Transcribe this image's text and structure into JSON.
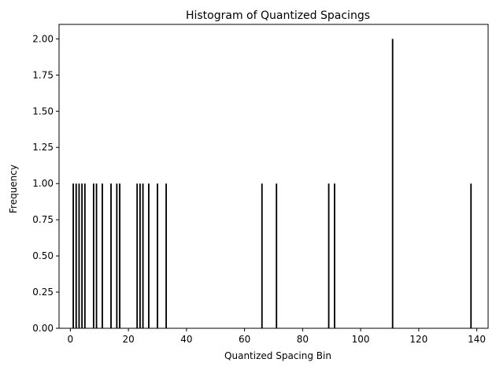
{
  "chart_data": {
    "type": "bar",
    "title": "Histogram of Quantized Spacings",
    "xlabel": "Quantized Spacing Bin",
    "ylabel": "Frequency",
    "xlim": [
      -3.9,
      143.9
    ],
    "ylim": [
      0,
      2.1
    ],
    "xticks": [
      0,
      20,
      40,
      60,
      80,
      100,
      120,
      140
    ],
    "xtick_labels": [
      "0",
      "20",
      "40",
      "60",
      "80",
      "100",
      "120",
      "140"
    ],
    "yticks": [
      0,
      0.25,
      0.5,
      0.75,
      1.0,
      1.25,
      1.5,
      1.75,
      2.0
    ],
    "ytick_labels": [
      "0.00",
      "0.25",
      "0.50",
      "0.75",
      "1.00",
      "1.25",
      "1.50",
      "1.75",
      "2.00"
    ],
    "bar_width": 0.5,
    "grid": false,
    "bar_color": "#000000",
    "x": [
      1,
      2,
      3,
      4,
      5,
      8,
      9,
      11,
      14,
      16,
      17,
      23,
      24,
      25,
      27,
      30,
      33,
      66,
      71,
      89,
      91,
      111,
      138
    ],
    "values": [
      1,
      1,
      1,
      1,
      1,
      1,
      1,
      1,
      1,
      1,
      1,
      1,
      1,
      1,
      1,
      1,
      1,
      1,
      1,
      1,
      1,
      2,
      1
    ]
  }
}
